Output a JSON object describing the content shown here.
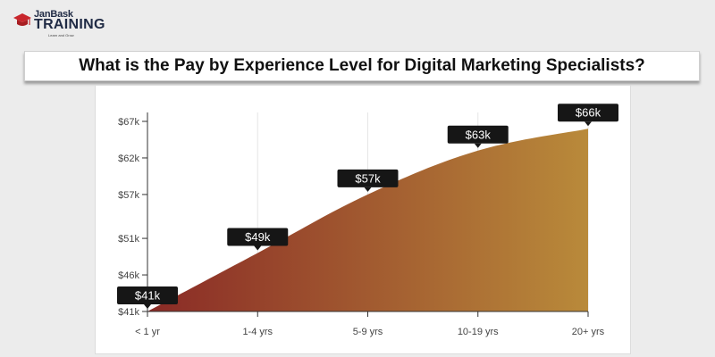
{
  "brand": {
    "top": "JanBask",
    "main": "TRAINING",
    "tagline": "Learn and Grow",
    "accent_color": "#c8262c",
    "text_color": "#1f2a44"
  },
  "title": "What is the Pay by Experience Level for Digital Marketing Specialists?",
  "chart_data": {
    "type": "area",
    "categories": [
      "< 1 yr",
      "1-4 yrs",
      "5-9 yrs",
      "10-19 yrs",
      "20+ yrs"
    ],
    "values": [
      41,
      49,
      57,
      63,
      66
    ],
    "data_labels": [
      "$41k",
      "$49k",
      "$57k",
      "$63k",
      "$66k"
    ],
    "y_ticks": [
      41,
      46,
      51,
      57,
      62,
      67
    ],
    "y_tick_labels": [
      "$41k",
      "$46k",
      "$51k",
      "$57k",
      "$62k",
      "$67k"
    ],
    "ylim": [
      41,
      67
    ],
    "grid": "vertical",
    "colors": {
      "start": "#8a2a26",
      "end": "#b98a3a",
      "badge": "#161616"
    }
  }
}
